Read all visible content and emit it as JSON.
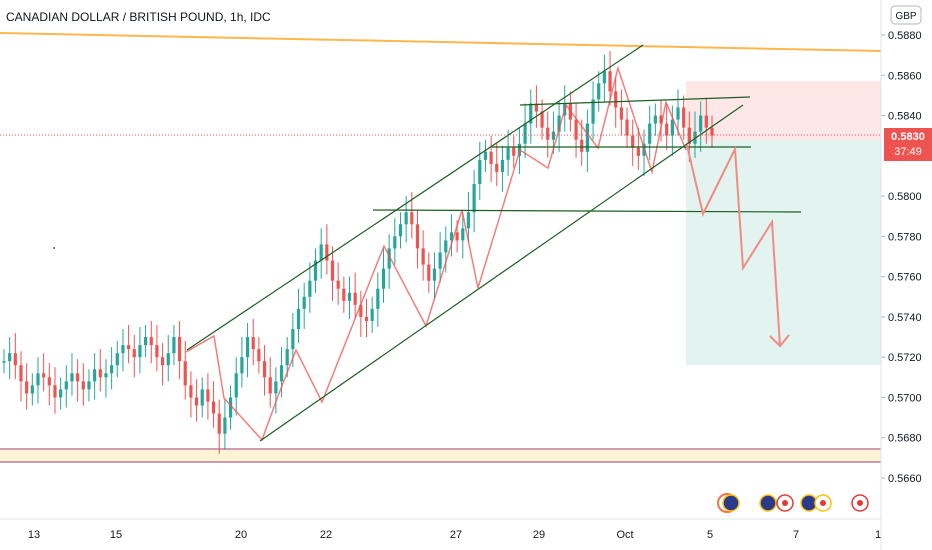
{
  "chart_data": {
    "type": "candlestick",
    "title": "CANADIAN DOLLAR / BRITISH POUND, 1h, IDC",
    "currency": "GBP",
    "ylim": [
      0.5645,
      0.5892
    ],
    "y_ticks": [
      "0.5880",
      "0.5860",
      "0.5840",
      "0.5800",
      "0.5780",
      "0.5760",
      "0.5740",
      "0.5720",
      "0.5700",
      "0.5680",
      "0.5660"
    ],
    "x_ticks": [
      "13",
      "15",
      "20",
      "22",
      "27",
      "29",
      "Oct",
      "5",
      "7",
      "1"
    ],
    "last_price": "0.5830",
    "countdown": "37:49",
    "price_path": [
      0.5718,
      0.5722,
      0.5716,
      0.5708,
      0.5702,
      0.5706,
      0.5712,
      0.571,
      0.5706,
      0.57,
      0.5704,
      0.5708,
      0.5712,
      0.5708,
      0.5704,
      0.5708,
      0.5714,
      0.571,
      0.5712,
      0.5716,
      0.5722,
      0.5726,
      0.5724,
      0.572,
      0.5726,
      0.573,
      0.5726,
      0.572,
      0.5716,
      0.5722,
      0.573,
      0.5718,
      0.5706,
      0.57,
      0.5696,
      0.5704,
      0.5698,
      0.5692,
      0.5682,
      0.569,
      0.57,
      0.5712,
      0.572,
      0.573,
      0.5724,
      0.5718,
      0.571,
      0.5702,
      0.5708,
      0.5716,
      0.5724,
      0.5734,
      0.5744,
      0.575,
      0.5758,
      0.5768,
      0.5776,
      0.5768,
      0.5758,
      0.5754,
      0.5748,
      0.5752,
      0.5746,
      0.574,
      0.5738,
      0.5744,
      0.5754,
      0.5764,
      0.5774,
      0.578,
      0.5786,
      0.5792,
      0.5786,
      0.5774,
      0.5766,
      0.5758,
      0.5764,
      0.5772,
      0.5778,
      0.5782,
      0.5778,
      0.5784,
      0.5792,
      0.5806,
      0.5818,
      0.5822,
      0.5816,
      0.5812,
      0.5818,
      0.5824,
      0.582,
      0.5826,
      0.5836,
      0.5846,
      0.5842,
      0.5834,
      0.5828,
      0.5832,
      0.584,
      0.5846,
      0.5838,
      0.5828,
      0.5822,
      0.5836,
      0.5848,
      0.5856,
      0.5862,
      0.5852,
      0.5844,
      0.5838,
      0.583,
      0.5824,
      0.582,
      0.5826,
      0.5836,
      0.584,
      0.5836,
      0.583,
      0.5838,
      0.5844,
      0.5834,
      0.5826,
      0.5832,
      0.584,
      0.5834,
      0.583
    ],
    "annotations": {
      "horizontal_levels": [
        0.5876,
        0.5672,
        0.5669
      ],
      "demand_zone": [
        0.5669,
        0.5676
      ],
      "channel_upper": [
        [
          0.5727,
          0.5877
        ]
      ],
      "channel_lower": [
        [
          0.568,
          0.5841
        ]
      ],
      "neckline_levels": [
        0.585,
        0.5824,
        0.5793
      ],
      "short_position": {
        "entry": 0.583,
        "stop": 0.5857,
        "target": 0.5717
      },
      "projection": [
        0.5826,
        0.5791,
        0.5824,
        0.5765,
        0.5786,
        0.5728
      ]
    },
    "colors": {
      "up": "#26a69a",
      "down": "#ef5350",
      "price_line": "#ef5350",
      "channel": "#1b5e20",
      "resistance": "#ffb74d",
      "support_zone": "#fff3d6",
      "stop_zone": "#fde4e4",
      "target_zone": "#dff2ee"
    }
  }
}
